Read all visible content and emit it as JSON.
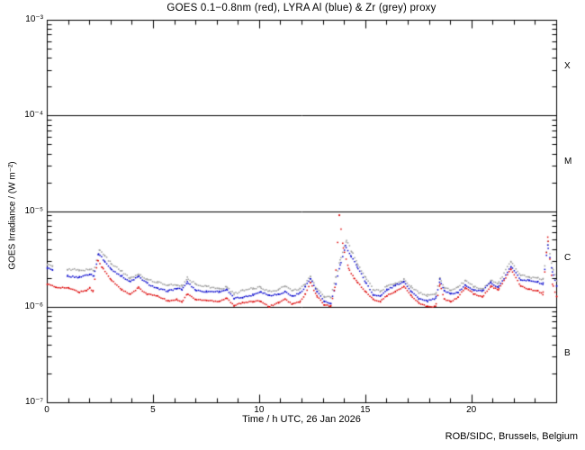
{
  "figure": {
    "footer": "ROB/SIDC, Brussels, Belgium"
  },
  "chart_data": {
    "type": "scatter",
    "title": "GOES 0.1−0.8nm (red), LYRA Al (blue) & Zr (grey) proxy",
    "xlabel": "Time / h UTC, 26 Jan 2026",
    "ylabel": "GOES Irradiance / (W m⁻²)",
    "x_range_hours": [
      0,
      24
    ],
    "x_major_tick_hours": [
      0,
      5,
      10,
      15,
      20
    ],
    "x_tick_labels": [
      "0",
      "5",
      "10",
      "15",
      "20"
    ],
    "x_minor_step_hours": 1,
    "y_scale": "log10",
    "y_range_w_m2": [
      1e-07,
      0.001
    ],
    "y_decade_exponents": [
      -3,
      -4,
      -5,
      -6,
      -7
    ],
    "y_decade_labels": [
      "10⁻³",
      "10⁻⁴",
      "10⁻⁵",
      "10⁻⁶",
      "10⁻⁷"
    ],
    "reference_lines_y": [
      0.0001,
      1e-05,
      1e-06
    ],
    "flare_class_labels": [
      {
        "label": "X",
        "band": [
          0.0001,
          0.001
        ]
      },
      {
        "label": "M",
        "band": [
          1e-05,
          0.0001
        ]
      },
      {
        "label": "C",
        "band": [
          1e-06,
          1e-05
        ]
      },
      {
        "label": "B",
        "band": [
          1e-07,
          1e-06
        ]
      }
    ],
    "grid": false,
    "legend_position": "in-title",
    "marker_style": "dotted",
    "series": [
      {
        "name": "GOES 0.1-0.8nm",
        "color": "#dd0000",
        "gaps": [],
        "points": [
          [
            0,
            1.75e-06
          ],
          [
            0.4,
            1.6e-06
          ],
          [
            1.0,
            1.55e-06
          ],
          [
            1.5,
            1.45e-06
          ],
          [
            1.85,
            1.55e-06
          ],
          [
            2.0,
            1.65e-06
          ],
          [
            2.15,
            1.5e-06
          ],
          [
            2.37,
            3.2e-06
          ],
          [
            2.6,
            2.6e-06
          ],
          [
            3.0,
            1.9e-06
          ],
          [
            3.5,
            1.5e-06
          ],
          [
            3.9,
            1.35e-06
          ],
          [
            4.3,
            1.6e-06
          ],
          [
            4.7,
            1.35e-06
          ],
          [
            5.2,
            1.28e-06
          ],
          [
            5.7,
            1.18e-06
          ],
          [
            6.1,
            1.25e-06
          ],
          [
            6.35,
            1.18e-06
          ],
          [
            6.6,
            1.4e-06
          ],
          [
            7.0,
            1.18e-06
          ],
          [
            7.5,
            1.15e-06
          ],
          [
            8.1,
            1.15e-06
          ],
          [
            8.45,
            1.25e-06
          ],
          [
            8.8,
            1.02e-06
          ],
          [
            9.2,
            1.1e-06
          ],
          [
            9.7,
            1.15e-06
          ],
          [
            10.05,
            1.2e-06
          ],
          [
            10.45,
            1.05e-06
          ],
          [
            10.9,
            1.12e-06
          ],
          [
            11.2,
            1.18e-06
          ],
          [
            11.55,
            1.05e-06
          ],
          [
            11.9,
            1.12e-06
          ],
          [
            12.15,
            1.35e-06
          ],
          [
            12.4,
            1.8e-06
          ],
          [
            12.7,
            1.3e-06
          ],
          [
            13.05,
            1.05e-06
          ],
          [
            13.35,
            1e-06
          ],
          [
            13.55,
            1.6e-06
          ],
          [
            13.76,
            9.2e-06
          ],
          [
            13.95,
            4.2e-06
          ],
          [
            14.2,
            2.6e-06
          ],
          [
            14.45,
            2.1e-06
          ],
          [
            14.6,
            1.9e-06
          ],
          [
            15.0,
            1.45e-06
          ],
          [
            15.35,
            1.18e-06
          ],
          [
            15.7,
            1.12e-06
          ],
          [
            16.0,
            1.3e-06
          ],
          [
            16.4,
            1.45e-06
          ],
          [
            16.8,
            1.65e-06
          ],
          [
            17.15,
            1.3e-06
          ],
          [
            17.5,
            1.1e-06
          ],
          [
            17.9,
            1.02e-06
          ],
          [
            18.3,
            1.05e-06
          ],
          [
            18.5,
            1.8e-06
          ],
          [
            18.7,
            1.25e-06
          ],
          [
            19.0,
            1.15e-06
          ],
          [
            19.35,
            1.25e-06
          ],
          [
            19.7,
            1.55e-06
          ],
          [
            20.1,
            1.35e-06
          ],
          [
            20.5,
            1.28e-06
          ],
          [
            20.9,
            1.65e-06
          ],
          [
            21.25,
            1.5e-06
          ],
          [
            21.85,
            2.5e-06
          ],
          [
            22.3,
            1.7e-06
          ],
          [
            22.7,
            1.6e-06
          ],
          [
            23.1,
            1.5e-06
          ],
          [
            23.35,
            1.35e-06
          ],
          [
            23.58,
            5.2e-06
          ],
          [
            23.8,
            1.7e-06
          ],
          [
            24,
            1.25e-06
          ]
        ]
      },
      {
        "name": "LYRA Al proxy",
        "color": "#0000cc",
        "gaps": [
          [
            0.28,
            0.92
          ]
        ],
        "points": [
          [
            0,
            2.5e-06
          ],
          [
            0.25,
            2.4e-06
          ],
          [
            0.95,
            2.2e-06
          ],
          [
            1.5,
            2.1e-06
          ],
          [
            2.0,
            2.2e-06
          ],
          [
            2.2,
            2.1e-06
          ],
          [
            2.42,
            3.6e-06
          ],
          [
            2.7,
            3e-06
          ],
          [
            3.0,
            2.5e-06
          ],
          [
            3.5,
            2.1e-06
          ],
          [
            3.9,
            1.8e-06
          ],
          [
            4.3,
            2.05e-06
          ],
          [
            4.7,
            1.8e-06
          ],
          [
            5.2,
            1.62e-06
          ],
          [
            5.7,
            1.5e-06
          ],
          [
            6.1,
            1.55e-06
          ],
          [
            6.35,
            1.5e-06
          ],
          [
            6.6,
            1.8e-06
          ],
          [
            7.0,
            1.5e-06
          ],
          [
            7.5,
            1.45e-06
          ],
          [
            8.1,
            1.42e-06
          ],
          [
            8.45,
            1.5e-06
          ],
          [
            8.8,
            1.25e-06
          ],
          [
            9.2,
            1.32e-06
          ],
          [
            9.7,
            1.38e-06
          ],
          [
            10.05,
            1.45e-06
          ],
          [
            10.45,
            1.3e-06
          ],
          [
            10.9,
            1.35e-06
          ],
          [
            11.2,
            1.45e-06
          ],
          [
            11.55,
            1.3e-06
          ],
          [
            11.9,
            1.38e-06
          ],
          [
            12.15,
            1.6e-06
          ],
          [
            12.4,
            1.95e-06
          ],
          [
            12.7,
            1.45e-06
          ],
          [
            13.05,
            1.18e-06
          ],
          [
            13.35,
            1.12e-06
          ],
          [
            13.6,
            1.8e-06
          ],
          [
            13.8,
            2.8e-06
          ],
          [
            14.05,
            4.4e-06
          ],
          [
            14.3,
            3.4e-06
          ],
          [
            14.6,
            2.6e-06
          ],
          [
            15.0,
            1.8e-06
          ],
          [
            15.35,
            1.35e-06
          ],
          [
            15.7,
            1.3e-06
          ],
          [
            16.0,
            1.5e-06
          ],
          [
            16.4,
            1.65e-06
          ],
          [
            16.8,
            1.85e-06
          ],
          [
            17.15,
            1.5e-06
          ],
          [
            17.5,
            1.28e-06
          ],
          [
            17.9,
            1.18e-06
          ],
          [
            18.3,
            1.22e-06
          ],
          [
            18.5,
            1.9e-06
          ],
          [
            18.7,
            1.45e-06
          ],
          [
            19.0,
            1.35e-06
          ],
          [
            19.35,
            1.42e-06
          ],
          [
            19.7,
            1.7e-06
          ],
          [
            20.1,
            1.5e-06
          ],
          [
            20.5,
            1.45e-06
          ],
          [
            20.9,
            1.8e-06
          ],
          [
            21.25,
            1.65e-06
          ],
          [
            21.85,
            2.75e-06
          ],
          [
            22.3,
            1.95e-06
          ],
          [
            22.7,
            1.85e-06
          ],
          [
            23.1,
            1.8e-06
          ],
          [
            23.35,
            1.7e-06
          ],
          [
            23.58,
            4.4e-06
          ],
          [
            23.8,
            2.3e-06
          ],
          [
            24,
            1.65e-06
          ]
        ]
      },
      {
        "name": "LYRA Zr proxy",
        "color": "#999999",
        "gaps": [
          [
            0.28,
            0.92
          ]
        ],
        "points": [
          [
            0,
            2.9e-06
          ],
          [
            0.25,
            2.75e-06
          ],
          [
            0.95,
            2.5e-06
          ],
          [
            1.5,
            2.4e-06
          ],
          [
            2.0,
            2.5e-06
          ],
          [
            2.2,
            2.4e-06
          ],
          [
            2.45,
            4e-06
          ],
          [
            2.7,
            3.4e-06
          ],
          [
            3.0,
            2.8e-06
          ],
          [
            3.5,
            2.35e-06
          ],
          [
            3.9,
            2.05e-06
          ],
          [
            4.3,
            2.3e-06
          ],
          [
            4.7,
            2e-06
          ],
          [
            5.2,
            1.8e-06
          ],
          [
            5.7,
            1.68e-06
          ],
          [
            6.1,
            1.72e-06
          ],
          [
            6.35,
            1.68e-06
          ],
          [
            6.6,
            2e-06
          ],
          [
            7.0,
            1.68e-06
          ],
          [
            7.5,
            1.62e-06
          ],
          [
            8.1,
            1.6e-06
          ],
          [
            8.45,
            1.68e-06
          ],
          [
            8.8,
            1.4e-06
          ],
          [
            9.2,
            1.48e-06
          ],
          [
            9.7,
            1.55e-06
          ],
          [
            10.05,
            1.62e-06
          ],
          [
            10.45,
            1.45e-06
          ],
          [
            10.9,
            1.5e-06
          ],
          [
            11.2,
            1.62e-06
          ],
          [
            11.55,
            1.45e-06
          ],
          [
            11.9,
            1.55e-06
          ],
          [
            12.15,
            1.8e-06
          ],
          [
            12.4,
            2.15e-06
          ],
          [
            12.7,
            1.6e-06
          ],
          [
            13.05,
            1.3e-06
          ],
          [
            13.35,
            1.25e-06
          ],
          [
            13.6,
            2e-06
          ],
          [
            13.8,
            3.1e-06
          ],
          [
            14.1,
            5e-06
          ],
          [
            14.35,
            3.8e-06
          ],
          [
            14.6,
            2.9e-06
          ],
          [
            15.0,
            2e-06
          ],
          [
            15.35,
            1.5e-06
          ],
          [
            15.7,
            1.45e-06
          ],
          [
            16.0,
            1.65e-06
          ],
          [
            16.4,
            1.82e-06
          ],
          [
            16.8,
            2e-06
          ],
          [
            17.15,
            1.65e-06
          ],
          [
            17.5,
            1.4e-06
          ],
          [
            17.9,
            1.3e-06
          ],
          [
            18.3,
            1.35e-06
          ],
          [
            18.5,
            2.05e-06
          ],
          [
            18.7,
            1.6e-06
          ],
          [
            19.0,
            1.5e-06
          ],
          [
            19.35,
            1.58e-06
          ],
          [
            19.7,
            1.85e-06
          ],
          [
            20.1,
            1.65e-06
          ],
          [
            20.5,
            1.6e-06
          ],
          [
            20.9,
            1.95e-06
          ],
          [
            21.25,
            1.8e-06
          ],
          [
            21.85,
            2.95e-06
          ],
          [
            22.3,
            2.15e-06
          ],
          [
            22.7,
            2.05e-06
          ],
          [
            23.1,
            2e-06
          ],
          [
            23.35,
            1.9e-06
          ],
          [
            23.58,
            4.7e-06
          ],
          [
            23.8,
            2.5e-06
          ],
          [
            24,
            1.9e-06
          ]
        ]
      }
    ]
  }
}
